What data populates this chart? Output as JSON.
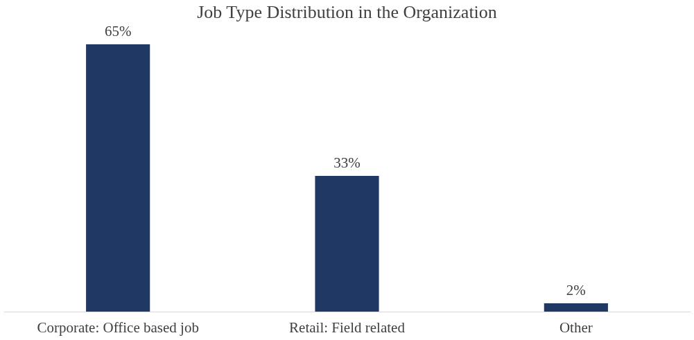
{
  "chart_data": {
    "type": "bar",
    "title": "Job Type Distribution in the Organization",
    "categories": [
      "Corporate: Office based job",
      "Retail: Field related",
      "Other"
    ],
    "values": [
      65,
      33,
      2
    ],
    "value_labels": [
      "65%",
      "33%",
      "2%"
    ],
    "color": "#203864",
    "grid": false,
    "tick_labels": "x"
  }
}
